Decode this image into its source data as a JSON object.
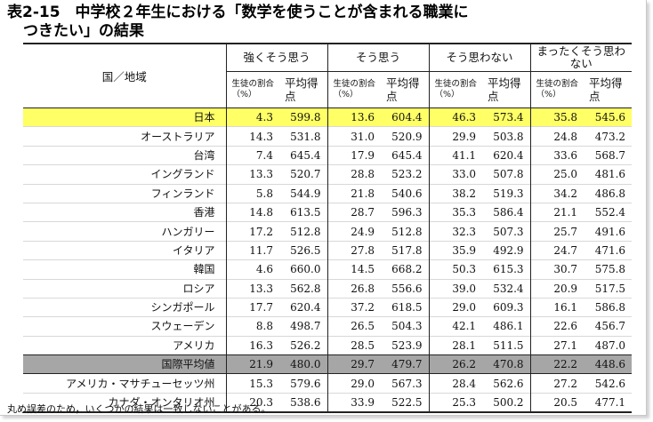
{
  "title": {
    "line1": "表2-15　中学校２年生における「数学を使うことが含まれる職業に",
    "line2": "つきたい」の結果"
  },
  "header": {
    "country": "国／地域",
    "groups": [
      "強くそう思う",
      "そう思う",
      "そう思わない",
      "まったくそう思わ\nない"
    ],
    "pct_label": "生徒の割合（%）",
    "avg_label": "平均得点"
  },
  "rows": [
    {
      "name": "日本",
      "v": [
        "4.3",
        "599.8",
        "13.6",
        "604.4",
        "46.3",
        "573.4",
        "35.8",
        "545.6"
      ]
    },
    {
      "name": "オーストラリア",
      "v": [
        "14.3",
        "531.8",
        "31.0",
        "520.9",
        "29.9",
        "503.8",
        "24.8",
        "473.2"
      ]
    },
    {
      "name": "台湾",
      "v": [
        "7.4",
        "645.4",
        "17.9",
        "645.4",
        "41.1",
        "620.4",
        "33.6",
        "568.7"
      ]
    },
    {
      "name": "イングランド",
      "v": [
        "13.3",
        "520.7",
        "28.8",
        "523.2",
        "33.0",
        "507.8",
        "25.0",
        "481.6"
      ]
    },
    {
      "name": "フィンランド",
      "v": [
        "5.8",
        "544.9",
        "21.8",
        "540.6",
        "38.2",
        "519.3",
        "34.2",
        "486.8"
      ]
    },
    {
      "name": "香港",
      "v": [
        "14.8",
        "613.5",
        "28.7",
        "596.3",
        "35.3",
        "586.4",
        "21.1",
        "552.4"
      ]
    },
    {
      "name": "ハンガリー",
      "v": [
        "17.2",
        "512.8",
        "24.9",
        "512.8",
        "32.3",
        "507.3",
        "25.7",
        "491.6"
      ]
    },
    {
      "name": "イタリア",
      "v": [
        "11.7",
        "526.5",
        "27.8",
        "517.8",
        "35.9",
        "492.9",
        "24.7",
        "471.6"
      ]
    },
    {
      "name": "韓国",
      "v": [
        "4.6",
        "660.0",
        "14.5",
        "668.2",
        "50.3",
        "615.3",
        "30.7",
        "575.8"
      ]
    },
    {
      "name": "ロシア",
      "v": [
        "13.3",
        "562.8",
        "26.8",
        "556.6",
        "39.0",
        "532.4",
        "20.9",
        "517.5"
      ]
    },
    {
      "name": "シンガポール",
      "v": [
        "17.7",
        "620.4",
        "37.2",
        "618.5",
        "29.0",
        "609.3",
        "16.1",
        "586.8"
      ]
    },
    {
      "name": "スウェーデン",
      "v": [
        "8.8",
        "498.7",
        "26.5",
        "504.3",
        "42.1",
        "486.1",
        "22.6",
        "456.7"
      ]
    },
    {
      "name": "アメリカ",
      "v": [
        "16.3",
        "526.2",
        "28.5",
        "523.9",
        "28.1",
        "511.5",
        "27.1",
        "487.0"
      ]
    },
    {
      "name": "国際平均値",
      "v": [
        "21.9",
        "480.0",
        "29.7",
        "479.7",
        "26.2",
        "470.8",
        "22.2",
        "448.6"
      ]
    },
    {
      "name": "アメリカ・マサチューセッツ州",
      "v": [
        "15.3",
        "579.6",
        "29.0",
        "567.3",
        "28.4",
        "562.6",
        "27.2",
        "542.6"
      ]
    },
    {
      "name": "カナダ・オンタリオ州",
      "v": [
        "20.3",
        "538.6",
        "33.9",
        "522.5",
        "25.3",
        "500.2",
        "20.5",
        "477.1"
      ]
    }
  ],
  "note": "丸め誤差のため，いくつかの結果は一致しないことがある。",
  "colors": {
    "highlight_japan": "#ffff66",
    "highlight_intl": "#a6a6a6"
  }
}
